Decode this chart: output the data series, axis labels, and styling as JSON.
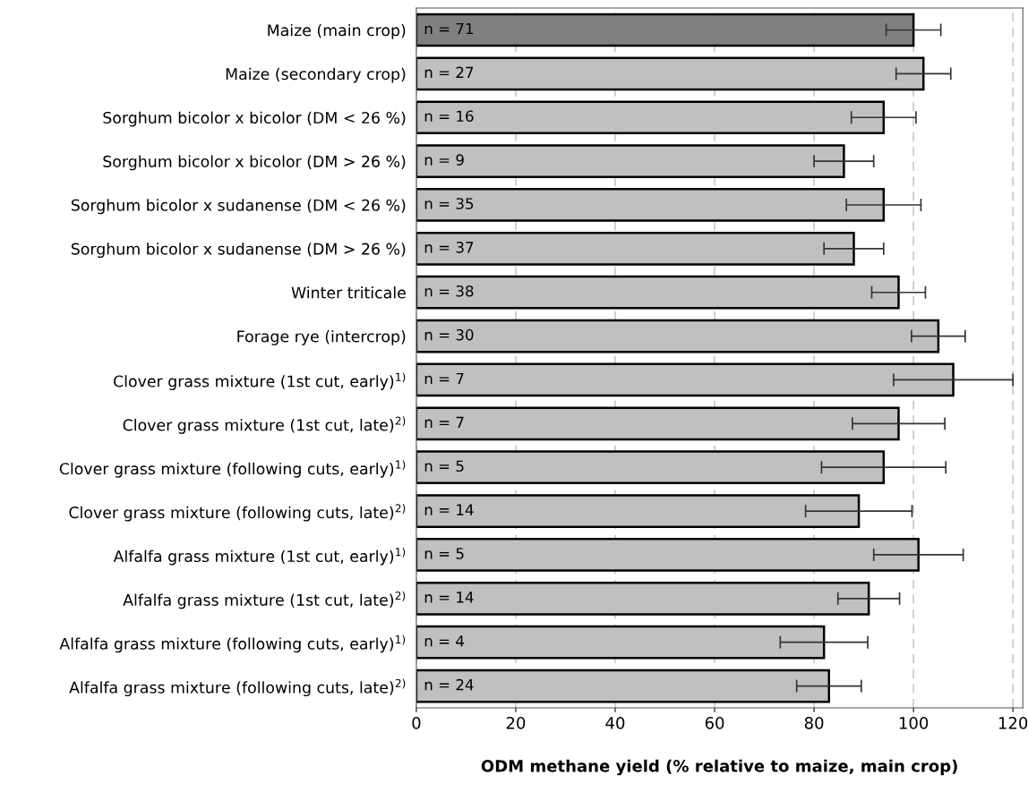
{
  "chart_data": {
    "type": "bar",
    "orientation": "horizontal",
    "xlabel": "ODM methane yield (% relative to maize, main crop)",
    "categories": [
      "Maize (main crop)",
      "Maize (secondary crop)",
      "Sorghum bicolor x bicolor (DM < 26 %)",
      "Sorghum bicolor x bicolor (DM > 26 %)",
      "Sorghum bicolor x sudanense (DM < 26 %)",
      "Sorghum bicolor x sudanense (DM > 26 %)",
      "Winter triticale",
      "Forage rye (intercrop)",
      "Clover grass mixture (1st cut, early)$^{1)}$",
      "Clover grass mixture (1st cut, late)$^{2)}$",
      "Clover grass mixture (following cuts, early)$^{1)}$",
      "Clover grass mixture (following cuts, late)$^{2)}$",
      "Alfalfa grass mixture (1st cut, early)$^{1)}$",
      "Alfalfa grass mixture (1st cut, late)$^{2)}$",
      "Alfalfa grass mixture (following cuts, early)$^{1)}$",
      "Alfalfa grass mixture (following cuts, late)$^{2)}$"
    ],
    "values": [
      100,
      102,
      94,
      86,
      94,
      88,
      97,
      105,
      108,
      97,
      94,
      89,
      101,
      91,
      82,
      83
    ],
    "errors": [
      5.5,
      5.5,
      6.5,
      6,
      7.5,
      6,
      5.4,
      5.4,
      12,
      9.3,
      12.5,
      10.7,
      9,
      6.2,
      8.8,
      6.5
    ],
    "colors": [
      "#808080",
      "#c0c0c0",
      "#c0c0c0",
      "#c0c0c0",
      "#c0c0c0",
      "#c0c0c0",
      "#c0c0c0",
      "#c0c0c0",
      "#c0c0c0",
      "#c0c0c0",
      "#c0c0c0",
      "#c0c0c0",
      "#c0c0c0",
      "#c0c0c0",
      "#c0c0c0",
      "#c0c0c0"
    ],
    "annotations": [
      "n = 71",
      "n = 27",
      "n = 16",
      "n = 9",
      "n = 35",
      "n = 37",
      "n = 38",
      "n = 30",
      "n = 7",
      "n = 7",
      "n = 5",
      "n = 14",
      "n = 5",
      "n = 14",
      "n = 4",
      "n = 24"
    ],
    "xlim": [
      0,
      122
    ],
    "xticks": [
      0,
      20,
      40,
      60,
      80,
      100,
      120
    ],
    "grid": "x"
  }
}
